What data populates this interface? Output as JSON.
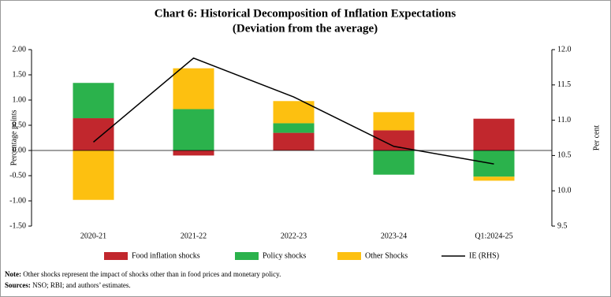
{
  "chart_data": {
    "type": "bar",
    "title": "Chart 6: Historical Decomposition of Inflation Expectations",
    "subtitle": "(Deviation from the average)",
    "y_label": "Percentage points",
    "y2_label": "Per cent",
    "categories": [
      "2020-21",
      "2021-22",
      "2022-23",
      "2023-24",
      "Q1:2024-25"
    ],
    "series": [
      {
        "name": "Food inflation shocks",
        "color": "#c1272d",
        "values": [
          0.64,
          -0.1,
          0.35,
          0.4,
          0.63
        ]
      },
      {
        "name": "Policy shocks",
        "color": "#2bb24c",
        "values": [
          0.7,
          0.82,
          0.19,
          -0.48,
          -0.52
        ]
      },
      {
        "name": "Other Shocks",
        "color": "#fdc010",
        "values": [
          -0.98,
          0.81,
          0.44,
          0.36,
          -0.08
        ]
      },
      {
        "name": "IE (RHS)",
        "color": "#000000",
        "type": "line",
        "axis": "y2",
        "values": [
          10.69,
          11.88,
          11.33,
          10.63,
          10.38
        ]
      }
    ],
    "stacked": true,
    "ylim": [
      -1.5,
      2.0
    ],
    "yticks": [
      {
        "value": -1.5,
        "label": "-1.50"
      },
      {
        "value": -1.0,
        "label": "-1.00"
      },
      {
        "value": -0.5,
        "label": "-0.50"
      },
      {
        "value": 0,
        "label": "0.00"
      },
      {
        "value": 0.5,
        "label": "0.50"
      },
      {
        "value": 1.0,
        "label": "1.00"
      },
      {
        "value": 1.5,
        "label": "1.50"
      },
      {
        "value": 2.0,
        "label": "2.00"
      }
    ],
    "y2lim": [
      9.5,
      12.0
    ],
    "y2ticks": [
      9.5,
      {
        "value": 10.0,
        "label": "10.0"
      },
      10.5,
      {
        "value": 11.0,
        "label": "11.0"
      },
      11.5,
      {
        "value": 12.0,
        "label": "12.0"
      }
    ],
    "grid": false,
    "legend": "bottom",
    "notes": [
      {
        "label": "Note:",
        "text": "Other shocks represent the impact of shocks other than in food prices and monetary policy."
      },
      {
        "label": "Sources:",
        "text": "NSO; RBI; and authors’ estimates."
      }
    ]
  }
}
